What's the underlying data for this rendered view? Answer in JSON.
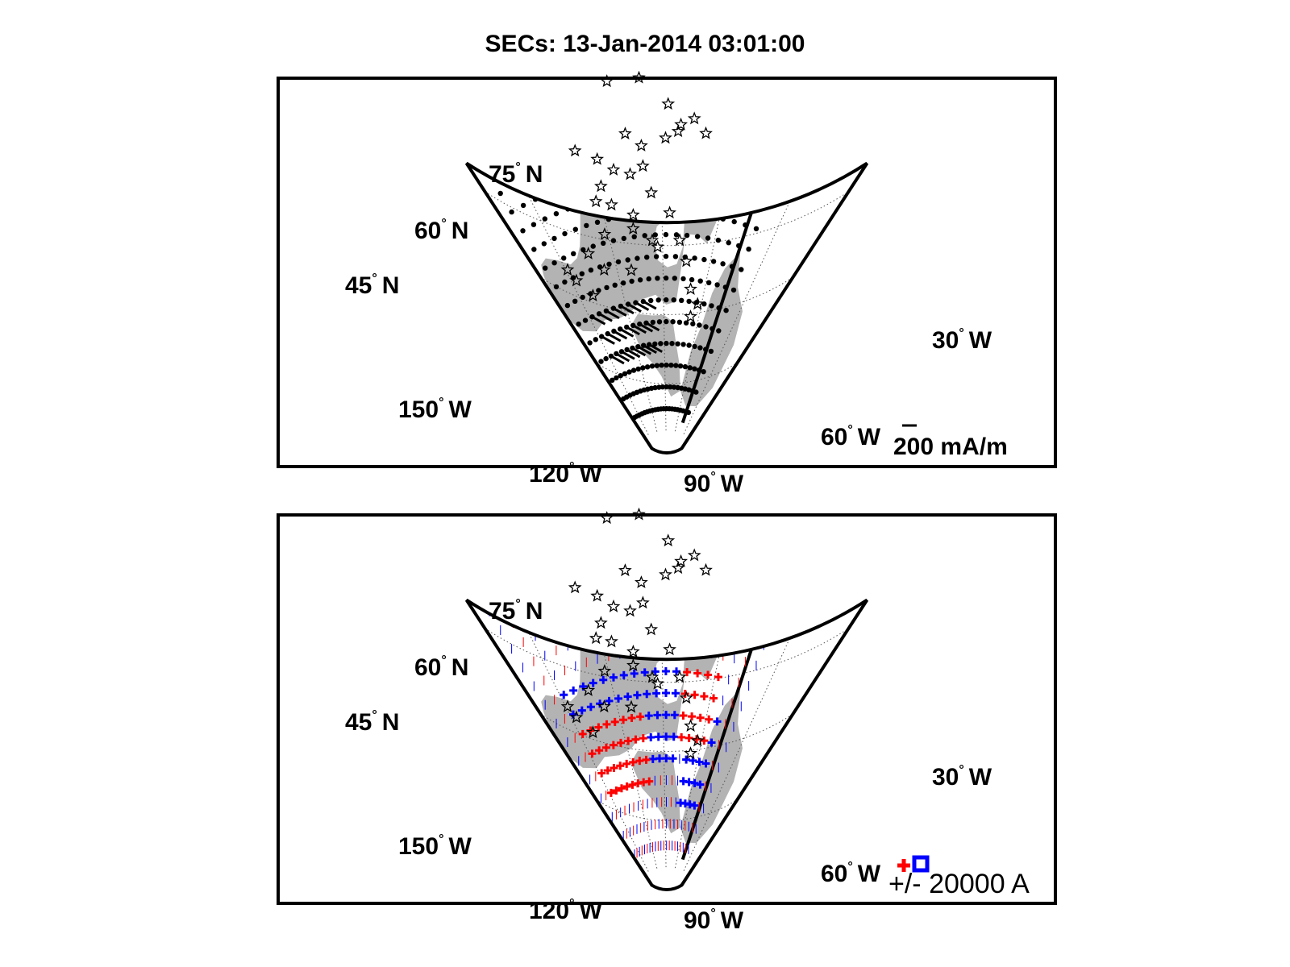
{
  "title": "SECs: 13-Jan-2014 03:01:00",
  "panels": [
    {
      "id": "top",
      "kind": "current-vectors",
      "lat_labels": [
        {
          "value": "75",
          "unit": "°",
          "suffix": "N"
        },
        {
          "value": "60",
          "unit": "°",
          "suffix": "N"
        },
        {
          "value": "45",
          "unit": "°",
          "suffix": "N"
        }
      ],
      "lon_labels": [
        {
          "value": "150",
          "unit": "°",
          "suffix": "W"
        },
        {
          "value": "120",
          "unit": "°",
          "suffix": "W"
        },
        {
          "value": "90",
          "unit": "°",
          "suffix": "W"
        },
        {
          "value": "60",
          "unit": "°",
          "suffix": "W"
        },
        {
          "value": "30",
          "unit": "°",
          "suffix": "W"
        }
      ],
      "scale_label": "200 mA/m"
    },
    {
      "id": "bottom",
      "kind": "sec-amplitudes",
      "lat_labels": [
        {
          "value": "75",
          "unit": "°",
          "suffix": "N"
        },
        {
          "value": "60",
          "unit": "°",
          "suffix": "N"
        },
        {
          "value": "45",
          "unit": "°",
          "suffix": "N"
        }
      ],
      "lon_labels": [
        {
          "value": "150",
          "unit": "°",
          "suffix": "W"
        },
        {
          "value": "120",
          "unit": "°",
          "suffix": "W"
        },
        {
          "value": "90",
          "unit": "°",
          "suffix": "W"
        },
        {
          "value": "60",
          "unit": "°",
          "suffix": "W"
        },
        {
          "value": "30",
          "unit": "°",
          "suffix": "W"
        }
      ],
      "scale_label": "+/- 20000 A"
    }
  ],
  "colors": {
    "land": "#b3b3b3",
    "frame": "#000000",
    "grid": "#555555",
    "positive": "#ff0000",
    "negative": "#0000ff",
    "station": "#000000"
  }
}
